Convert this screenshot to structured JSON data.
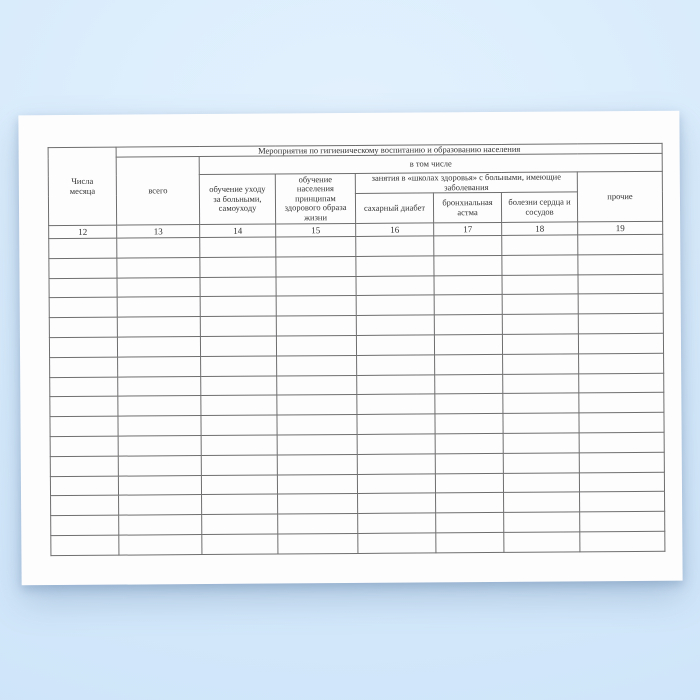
{
  "table": {
    "group_headers": {
      "measures": "Мероприятия по гигиеническому воспитанию и образованию населения",
      "including": "в том числе",
      "health_schools": "занятия в «школах здоровья» с больными, имеющие\nзаболевания"
    },
    "headers": {
      "col12": "Числа\nмесяца",
      "col13": "всего",
      "col14": "обучение уходу\nза больными,\nсамоуходу",
      "col15": "обучение\nнаселения\nпринципам\nздорового образа\nжизни",
      "col16": "сахарный диабет",
      "col17": "бронхиальная\nастма",
      "col18": "болезни сердца и\nсосудов",
      "col19": "прочие"
    },
    "column_numbers": [
      "12",
      "13",
      "14",
      "15",
      "16",
      "17",
      "18",
      "19"
    ],
    "body_rows": 16,
    "body_columns": 8
  },
  "colors": {
    "background_top": "#e3f1fd",
    "background_mid": "#d7ebfc",
    "background_bottom": "#cde3f8",
    "paper": "#fdfdfe",
    "grid_line": "#6e6e6e",
    "text": "#333333"
  }
}
